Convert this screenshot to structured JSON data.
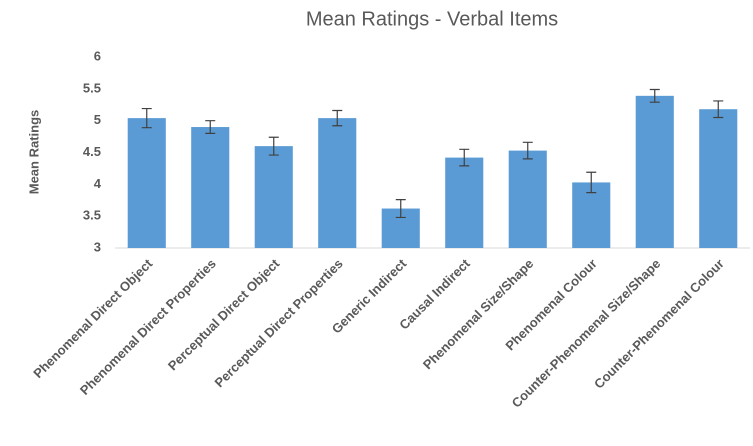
{
  "chart_data": {
    "type": "bar",
    "title": "Mean Ratings - Verbal Items",
    "y_label": "Mean Ratings",
    "categories": [
      "Phenomenal Direct Object",
      "Phenomenal Direct Properties",
      "Perceptual Direct Object",
      "Perceptual Direct Properties",
      "Generic Indirect",
      "Causal Indirect",
      "Phenomenal Size/Shape",
      "Phenomenal Colour",
      "Counter-Phenomenal Size/Shape",
      "Counter-Phenomenal Colour"
    ],
    "values": [
      5.04,
      4.9,
      4.6,
      5.04,
      3.62,
      4.42,
      4.53,
      4.03,
      5.39,
      5.18
    ],
    "errors": [
      0.15,
      0.1,
      0.14,
      0.12,
      0.14,
      0.13,
      0.13,
      0.16,
      0.1,
      0.13
    ],
    "color": "#5b9bd5",
    "error_color": "#404040",
    "ylim": [
      3,
      6
    ],
    "yticks": [
      3,
      {
        "value": 3.5,
        "label": "3.5"
      },
      4,
      {
        "value": 4.5,
        "label": "4.5"
      },
      5,
      {
        "value": 5.5,
        "label": "5.5"
      },
      6
    ],
    "grid": false
  }
}
